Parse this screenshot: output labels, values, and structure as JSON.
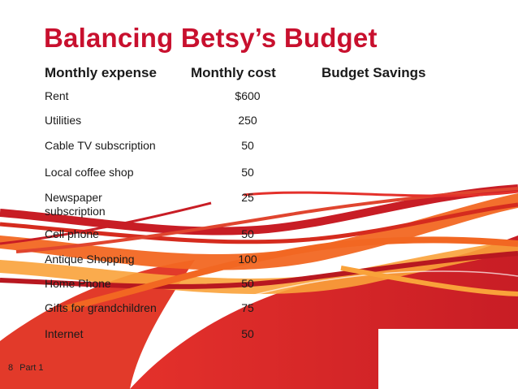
{
  "slide": {
    "title": "Balancing Betsy’s Budget",
    "headers": {
      "expense": "Monthly expense",
      "cost": "Monthly cost",
      "savings": "Budget Savings"
    },
    "rows": [
      {
        "expense": "Rent",
        "cost": "$600"
      },
      {
        "expense": "Utilities",
        "cost": "250"
      },
      {
        "expense": "Cable TV subscription",
        "cost": "50"
      },
      {
        "expense": "Local coffee shop",
        "cost": "50"
      },
      {
        "expense": "Newspaper subscription",
        "cost": "25"
      },
      {
        "expense": "Cell phone",
        "cost": "50"
      },
      {
        "expense": "Antique Shopping",
        "cost": "100"
      },
      {
        "expense": "Home Phone",
        "cost": "50"
      },
      {
        "expense": "Gifts for grandchildren",
        "cost": "75"
      },
      {
        "expense": "Internet",
        "cost": "50"
      }
    ],
    "footer": {
      "page_number": "8",
      "section": "Part 1"
    }
  },
  "colors": {
    "title": "#c8102e",
    "ribbon_red": "#d52b1e",
    "ribbon_orange": "#f26722",
    "ribbon_light": "#f9a23a"
  }
}
